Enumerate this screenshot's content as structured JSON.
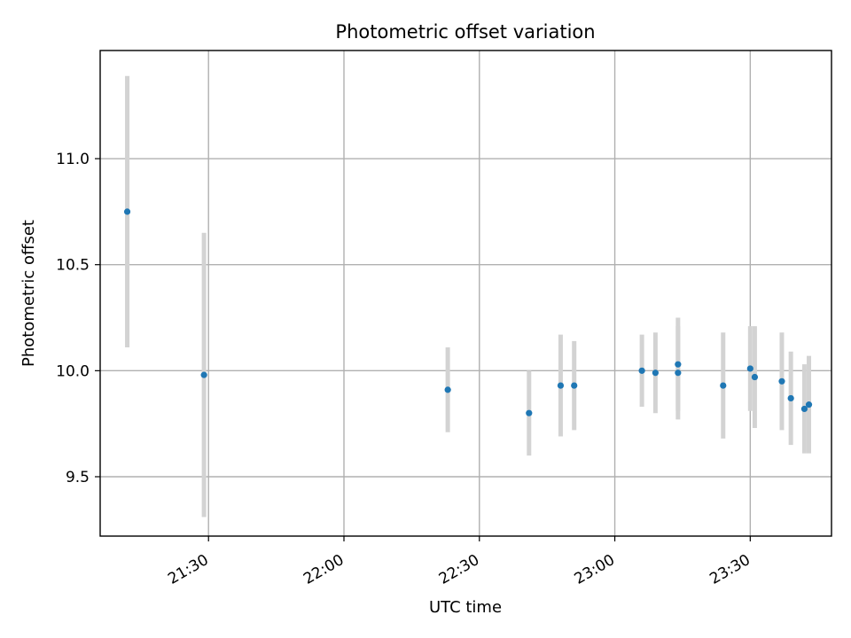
{
  "chart_data": {
    "type": "scatter",
    "title": "Photometric offset variation",
    "xlabel": "UTC time",
    "ylabel": "Photometric offset",
    "xlim": [
      "21:06",
      "23:48"
    ],
    "ylim": [
      9.22,
      11.51
    ],
    "x_ticks": [
      "21:30",
      "22:00",
      "22:30",
      "23:00",
      "23:30"
    ],
    "y_ticks": [
      9.5,
      10.0,
      10.5,
      11.0
    ],
    "grid": true,
    "colors": {
      "point": "#1f77b4",
      "errorbar": "#d3d3d3"
    },
    "points": [
      {
        "time": "21:12",
        "y": 10.75,
        "err": 0.64
      },
      {
        "time": "21:29",
        "y": 9.98,
        "err": 0.67
      },
      {
        "time": "22:23",
        "y": 9.91,
        "err": 0.2
      },
      {
        "time": "22:41",
        "y": 9.8,
        "err": 0.2
      },
      {
        "time": "22:48",
        "y": 9.93,
        "err": 0.24
      },
      {
        "time": "22:51",
        "y": 9.93,
        "err": 0.21
      },
      {
        "time": "23:06",
        "y": 10.0,
        "err": 0.17
      },
      {
        "time": "23:09",
        "y": 9.99,
        "err": 0.19
      },
      {
        "time": "23:14",
        "y": 9.99,
        "err": 0.22
      },
      {
        "time": "23:14",
        "y": 10.03,
        "err": 0.22
      },
      {
        "time": "23:24",
        "y": 9.93,
        "err": 0.25
      },
      {
        "time": "23:30",
        "y": 10.01,
        "err": 0.2
      },
      {
        "time": "23:31",
        "y": 9.97,
        "err": 0.24
      },
      {
        "time": "23:37",
        "y": 9.95,
        "err": 0.23
      },
      {
        "time": "23:39",
        "y": 9.87,
        "err": 0.22
      },
      {
        "time": "23:42",
        "y": 9.82,
        "err": 0.21
      },
      {
        "time": "23:43",
        "y": 9.84,
        "err": 0.23
      }
    ]
  }
}
